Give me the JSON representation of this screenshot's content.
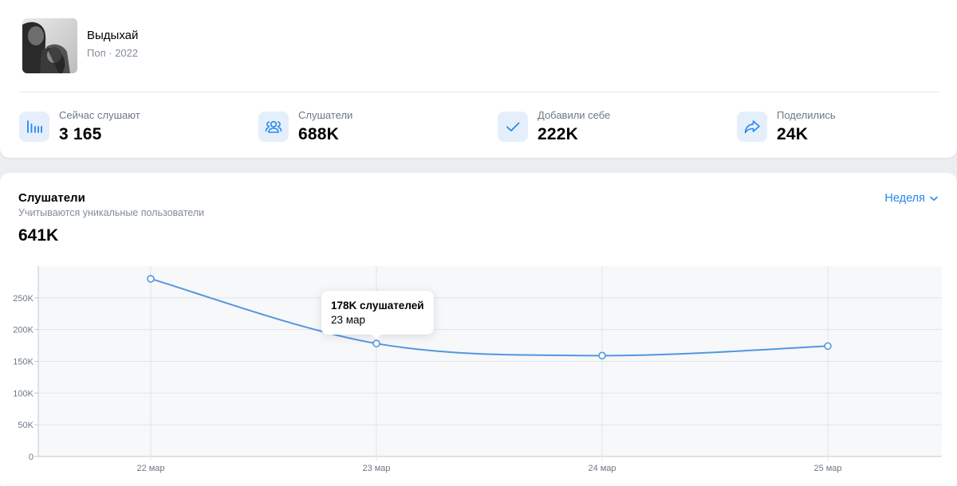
{
  "track": {
    "title": "Выдыхай",
    "meta": "Поп · 2022"
  },
  "stats": [
    {
      "icon": "bars-icon",
      "label": "Сейчас слушают",
      "value": "3 165"
    },
    {
      "icon": "users-icon",
      "label": "Слушатели",
      "value": "688K"
    },
    {
      "icon": "checkmark-icon",
      "label": "Добавили себе",
      "value": "222K"
    },
    {
      "icon": "share-arrow-icon",
      "label": "Поделились",
      "value": "24K"
    }
  ],
  "listeners": {
    "title": "Слушатели",
    "subtitle": "Учитываются уникальные пользователи",
    "total": "641K",
    "period": "Неделя"
  },
  "chart_data": {
    "type": "line",
    "categories": [
      "22 мар",
      "23 мар",
      "24 мар",
      "25 мар"
    ],
    "series": [
      {
        "values": [
          280000,
          178000,
          159000,
          174000
        ]
      }
    ],
    "yticks": [
      0,
      50000,
      100000,
      150000,
      200000,
      250000
    ],
    "ytick_labels": [
      "0",
      "50K",
      "100K",
      "150K",
      "200K",
      "250K"
    ],
    "ylim": [
      0,
      300000
    ],
    "grid": true,
    "line_color": "#5397e0"
  },
  "tooltip": {
    "value": "178K слушателей",
    "date": "23 мар"
  }
}
